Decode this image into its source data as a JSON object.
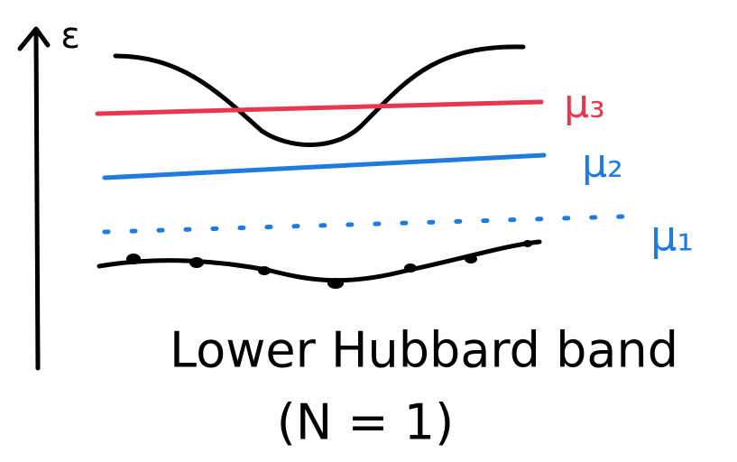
{
  "axis_label": "ε",
  "levels": [
    {
      "label": "μ₃"
    },
    {
      "label": "μ₂"
    },
    {
      "label": "μ₁"
    }
  ],
  "caption": {
    "title": "Lower Hubbard band",
    "subtitle": "(N = 1)"
  }
}
